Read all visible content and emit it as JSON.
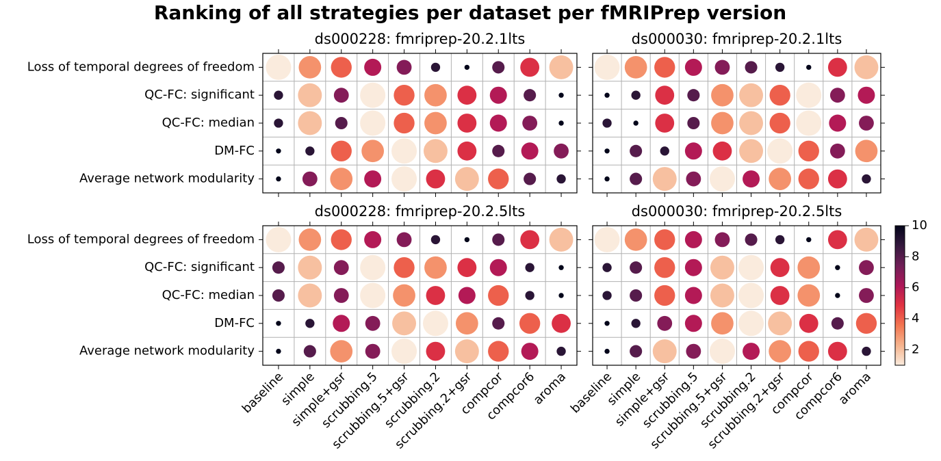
{
  "title": "Ranking of all strategies per dataset per fMRIPrep version",
  "strategies": [
    "baseline",
    "simple",
    "simple+gsr",
    "scrubbing.5",
    "scrubbing.5+gsr",
    "scrubbing.2",
    "scrubbing.2+gsr",
    "compcor",
    "compcor6",
    "aroma"
  ],
  "metrics": [
    "Loss of temporal degrees of freedom",
    "QC-FC: significant",
    "QC-FC: median",
    "DM-FC",
    "Average network modularity"
  ],
  "chart_data": [
    {
      "type": "bubble",
      "title": "ds000228: fmriprep-20.2.1lts",
      "values": [
        [
          1,
          3,
          4,
          6,
          7,
          9,
          10,
          8,
          5,
          2
        ],
        [
          9,
          2,
          7,
          1,
          4,
          3,
          5,
          6,
          8,
          10
        ],
        [
          9,
          2,
          8,
          1,
          4,
          3,
          5,
          6,
          7,
          10
        ],
        [
          10,
          9,
          4,
          3,
          1,
          2,
          5,
          8,
          6,
          7
        ],
        [
          10,
          7,
          3,
          6,
          1,
          5,
          2,
          4,
          8,
          9
        ]
      ]
    },
    {
      "type": "bubble",
      "title": "ds000030: fmriprep-20.2.1lts",
      "values": [
        [
          1,
          3,
          4,
          6,
          7,
          8,
          9,
          10,
          5,
          2
        ],
        [
          10,
          9,
          5,
          8,
          3,
          2,
          4,
          1,
          7,
          6
        ],
        [
          9,
          10,
          5,
          8,
          3,
          2,
          4,
          1,
          6,
          7
        ],
        [
          10,
          8,
          9,
          6,
          5,
          2,
          1,
          4,
          7,
          3
        ],
        [
          10,
          8,
          2,
          7,
          1,
          6,
          3,
          4,
          5,
          9
        ]
      ]
    },
    {
      "type": "bubble",
      "title": "ds000228: fmriprep-20.2.5lts",
      "values": [
        [
          1,
          3,
          4,
          6,
          7,
          9,
          10,
          8,
          5,
          2
        ],
        [
          8,
          2,
          7,
          1,
          4,
          3,
          5,
          6,
          9,
          10
        ],
        [
          8,
          2,
          7,
          1,
          3,
          5,
          6,
          4,
          9,
          10
        ],
        [
          10,
          9,
          6,
          7,
          2,
          1,
          3,
          8,
          4,
          5
        ],
        [
          10,
          8,
          3,
          7,
          1,
          5,
          2,
          4,
          6,
          9
        ]
      ]
    },
    {
      "type": "bubble",
      "title": "ds000030: fmriprep-20.2.5lts",
      "values": [
        [
          1,
          3,
          4,
          6,
          7,
          8,
          9,
          10,
          5,
          2
        ],
        [
          9,
          8,
          4,
          6,
          2,
          1,
          5,
          3,
          10,
          7
        ],
        [
          9,
          8,
          4,
          6,
          2,
          1,
          5,
          3,
          10,
          7
        ],
        [
          10,
          9,
          7,
          6,
          3,
          1,
          2,
          5,
          8,
          4
        ],
        [
          10,
          8,
          2,
          7,
          1,
          6,
          3,
          4,
          5,
          9
        ]
      ]
    }
  ],
  "colorbar": {
    "clim": [
      1,
      10
    ],
    "ticks": [
      2,
      4,
      6,
      8,
      10
    ],
    "colormap": [
      "#faebdd",
      "#f6b48e",
      "#f37651",
      "#e13342",
      "#ad1759",
      "#701f57",
      "#35193e",
      "#03051a"
    ]
  }
}
